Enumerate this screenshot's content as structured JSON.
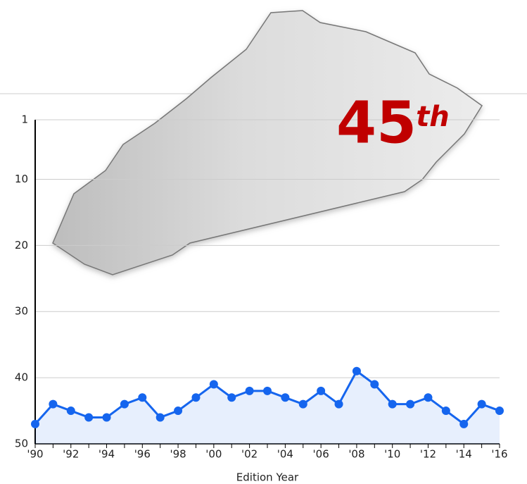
{
  "chart_data": {
    "type": "line",
    "annotation": {
      "rank": "45",
      "suffix": "th"
    },
    "x_label": "Edition Year",
    "categories": [
      "'90",
      null,
      "'92",
      null,
      "'94",
      null,
      "'96",
      null,
      "'98",
      null,
      "'00",
      null,
      "'02",
      null,
      "'04",
      null,
      "'06",
      null,
      "'08",
      null,
      "'10",
      null,
      "'12",
      null,
      "'14",
      null,
      "'16"
    ],
    "values": [
      47,
      44,
      45,
      46,
      46,
      44,
      43,
      46,
      45,
      43,
      41,
      43,
      42,
      42,
      43,
      44,
      42,
      44,
      39,
      41,
      44,
      44,
      43,
      45,
      47,
      44,
      45
    ],
    "color": "#1565ee",
    "ylim": [
      1,
      50
    ],
    "yticks": [
      1,
      10,
      20,
      30,
      40,
      50
    ],
    "y_inverted": true,
    "grid": true
  }
}
